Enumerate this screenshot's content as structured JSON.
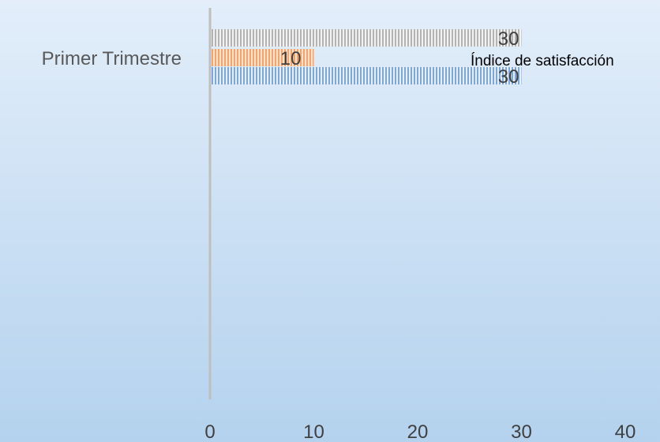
{
  "chart_data": {
    "type": "bar",
    "orientation": "horizontal",
    "categories": [
      "Primer Trimestre"
    ],
    "series": [
      {
        "values": [
          30
        ],
        "color": "#7da7d9",
        "pattern": "vertical-stripes"
      },
      {
        "values": [
          10
        ],
        "color": "#f4a36a",
        "pattern": "vertical-stripes"
      },
      {
        "values": [
          30
        ],
        "color": "#b3b3b3",
        "pattern": "vertical-stripes"
      }
    ],
    "data_labels": [
      "30",
      "10",
      "30"
    ],
    "x_ticks": [
      "0",
      "10",
      "20",
      "30",
      "40"
    ],
    "xlim": [
      0,
      40
    ],
    "annotation": "Índice  de satisfacción",
    "grid": false,
    "legend": "none"
  }
}
